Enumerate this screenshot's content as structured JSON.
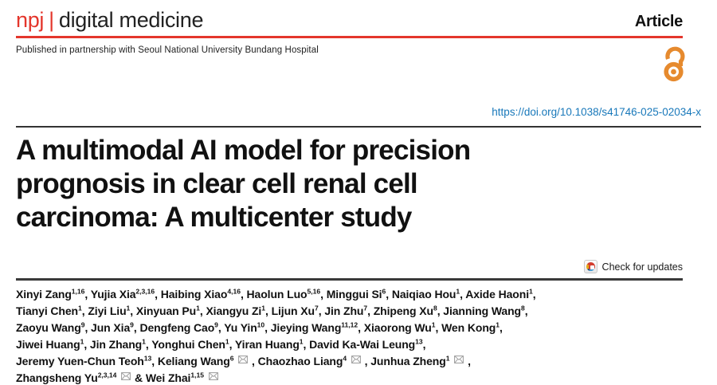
{
  "brand": {
    "npj": "npj",
    "separator": "|",
    "journal": "digital medicine"
  },
  "article_label": "Article",
  "partnership": "Published in partnership with Seoul National University Bundang Hospital",
  "doi": "https://doi.org/10.1038/s41746-025-02034-x",
  "title_lines": [
    "A multimodal AI model for precision",
    "prognosis in clear cell renal cell",
    "carcinoma: A multicenter study"
  ],
  "check_for_updates_label": "Check for updates",
  "colors": {
    "brand_red": "#e4362c",
    "link_blue": "#1878ba",
    "open_access_orange": "#e68a2e",
    "rule_dark": "#333333"
  },
  "icons": {
    "open_access": "open-access-padlock-icon",
    "crossmark": "crossmark-check-for-updates-icon",
    "envelope": "corresponding-author-email-icon"
  },
  "authors": {
    "lines": [
      [
        {
          "t": "Xinyi Zang",
          "s": "1,16"
        },
        {
          "t": ", Yujia Xia",
          "s": "2,3,16"
        },
        {
          "t": ", Haibing Xiao",
          "s": "4,16"
        },
        {
          "t": ", Haolun Luo",
          "s": "5,16"
        },
        {
          "t": ", Minggui Si",
          "s": "6"
        },
        {
          "t": ", Naiqiao Hou",
          "s": "1"
        },
        {
          "t": ", Axide Haoni",
          "s": "1"
        },
        {
          "t": ","
        }
      ],
      [
        {
          "t": "Tianyi Chen",
          "s": "1"
        },
        {
          "t": ", Ziyi Liu",
          "s": "1"
        },
        {
          "t": ", Xinyuan Pu",
          "s": "1"
        },
        {
          "t": ", Xiangyu Zi",
          "s": "1"
        },
        {
          "t": ", Lijun Xu",
          "s": "7"
        },
        {
          "t": ", Jin Zhu",
          "s": "7"
        },
        {
          "t": ", Zhipeng Xu",
          "s": "8"
        },
        {
          "t": ", Jianning Wang",
          "s": "8"
        },
        {
          "t": ","
        }
      ],
      [
        {
          "t": "Zaoyu Wang",
          "s": "9"
        },
        {
          "t": ", Jun Xia",
          "s": "9"
        },
        {
          "t": ", Dengfeng Cao",
          "s": "9"
        },
        {
          "t": ", Yu Yin",
          "s": "10"
        },
        {
          "t": ", Jieying Wang",
          "s": "11,12"
        },
        {
          "t": ", Xiaorong Wu",
          "s": "1"
        },
        {
          "t": ", Wen Kong",
          "s": "1"
        },
        {
          "t": ","
        }
      ],
      [
        {
          "t": "Jiwei Huang",
          "s": "1"
        },
        {
          "t": ", Jin Zhang",
          "s": "1"
        },
        {
          "t": ", Yonghui Chen",
          "s": "1"
        },
        {
          "t": ", Yiran Huang",
          "s": "1"
        },
        {
          "t": ", David Ka-Wai Leung",
          "s": "13"
        },
        {
          "t": ","
        }
      ],
      [
        {
          "t": "Jeremy Yuen-Chun Teoh",
          "s": "13"
        },
        {
          "t": ", Keliang Wang",
          "s": "6",
          "e": true
        },
        {
          "t": ", Chaozhao Liang",
          "s": "4",
          "e": true
        },
        {
          "t": ", Junhua Zheng",
          "s": "1",
          "e": true
        },
        {
          "t": ","
        }
      ],
      [
        {
          "t": "Zhangsheng Yu",
          "s": "2,3,14",
          "e": true
        },
        {
          "t": " & Wei Zhai",
          "s": "1,15",
          "e": true
        }
      ]
    ]
  }
}
